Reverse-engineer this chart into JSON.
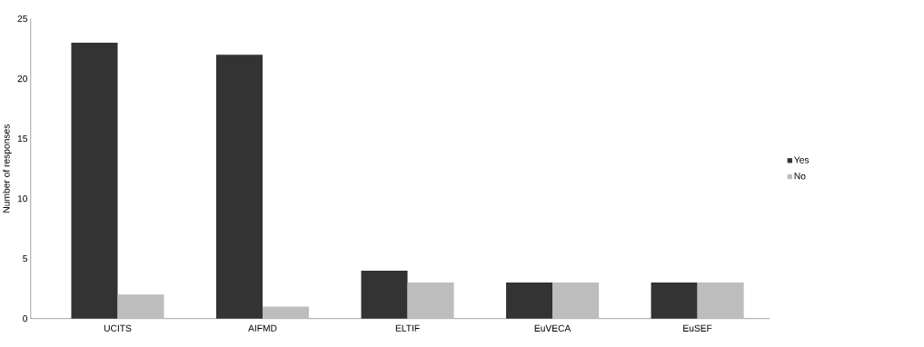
{
  "chart_data": {
    "type": "bar",
    "ylabel": "Number of responses",
    "categories": [
      "UCITS",
      "AIFMD",
      "ELTIF",
      "EuVECA",
      "EuSEF"
    ],
    "series": [
      {
        "name": "Yes",
        "color": "#333333",
        "values": [
          23,
          22,
          4,
          3,
          3
        ]
      },
      {
        "name": "No",
        "color": "#bdbdbd",
        "values": [
          2,
          1,
          3,
          3,
          3
        ]
      }
    ],
    "ylim": [
      0,
      25
    ],
    "yticks": [
      0,
      5,
      10,
      15,
      20,
      25
    ],
    "grid": false,
    "legend": "right"
  }
}
